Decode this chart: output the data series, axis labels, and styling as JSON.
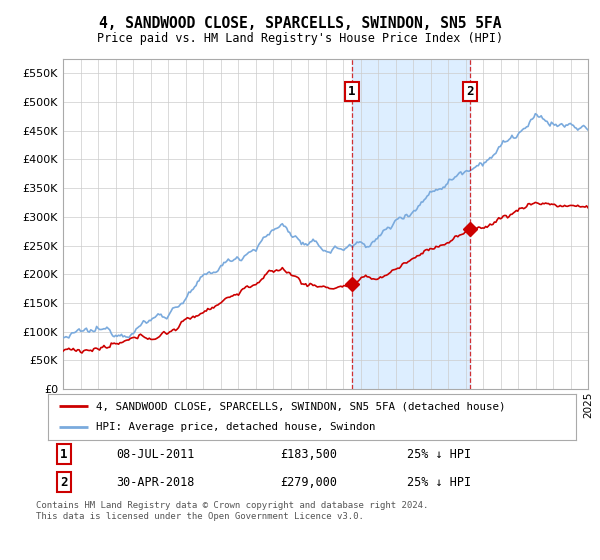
{
  "title": "4, SANDWOOD CLOSE, SPARCELLS, SWINDON, SN5 5FA",
  "subtitle": "Price paid vs. HM Land Registry's House Price Index (HPI)",
  "ylim": [
    0,
    575000
  ],
  "yticks": [
    0,
    50000,
    100000,
    150000,
    200000,
    250000,
    300000,
    350000,
    400000,
    450000,
    500000,
    550000
  ],
  "ytick_labels": [
    "£0",
    "£50K",
    "£100K",
    "£150K",
    "£200K",
    "£250K",
    "£300K",
    "£350K",
    "£400K",
    "£450K",
    "£500K",
    "£550K"
  ],
  "x_start_year": 1995,
  "x_end_year": 2025,
  "sale1_year": 2011.5,
  "sale1_price": 183500,
  "sale2_year": 2018.25,
  "sale2_price": 279000,
  "sale1_label": "1",
  "sale2_label": "2",
  "sale1_date": "08-JUL-2011",
  "sale1_amount": "£183,500",
  "sale1_hpi": "25% ↓ HPI",
  "sale2_date": "30-APR-2018",
  "sale2_amount": "£279,000",
  "sale2_hpi": "25% ↓ HPI",
  "legend_line1": "4, SANDWOOD CLOSE, SPARCELLS, SWINDON, SN5 5FA (detached house)",
  "legend_line2": "HPI: Average price, detached house, Swindon",
  "footer": "Contains HM Land Registry data © Crown copyright and database right 2024.\nThis data is licensed under the Open Government Licence v3.0.",
  "red_line_color": "#cc0000",
  "blue_line_color": "#7aaadd",
  "shade_color": "#ddeeff",
  "background_color": "#ffffff",
  "grid_color": "#cccccc"
}
